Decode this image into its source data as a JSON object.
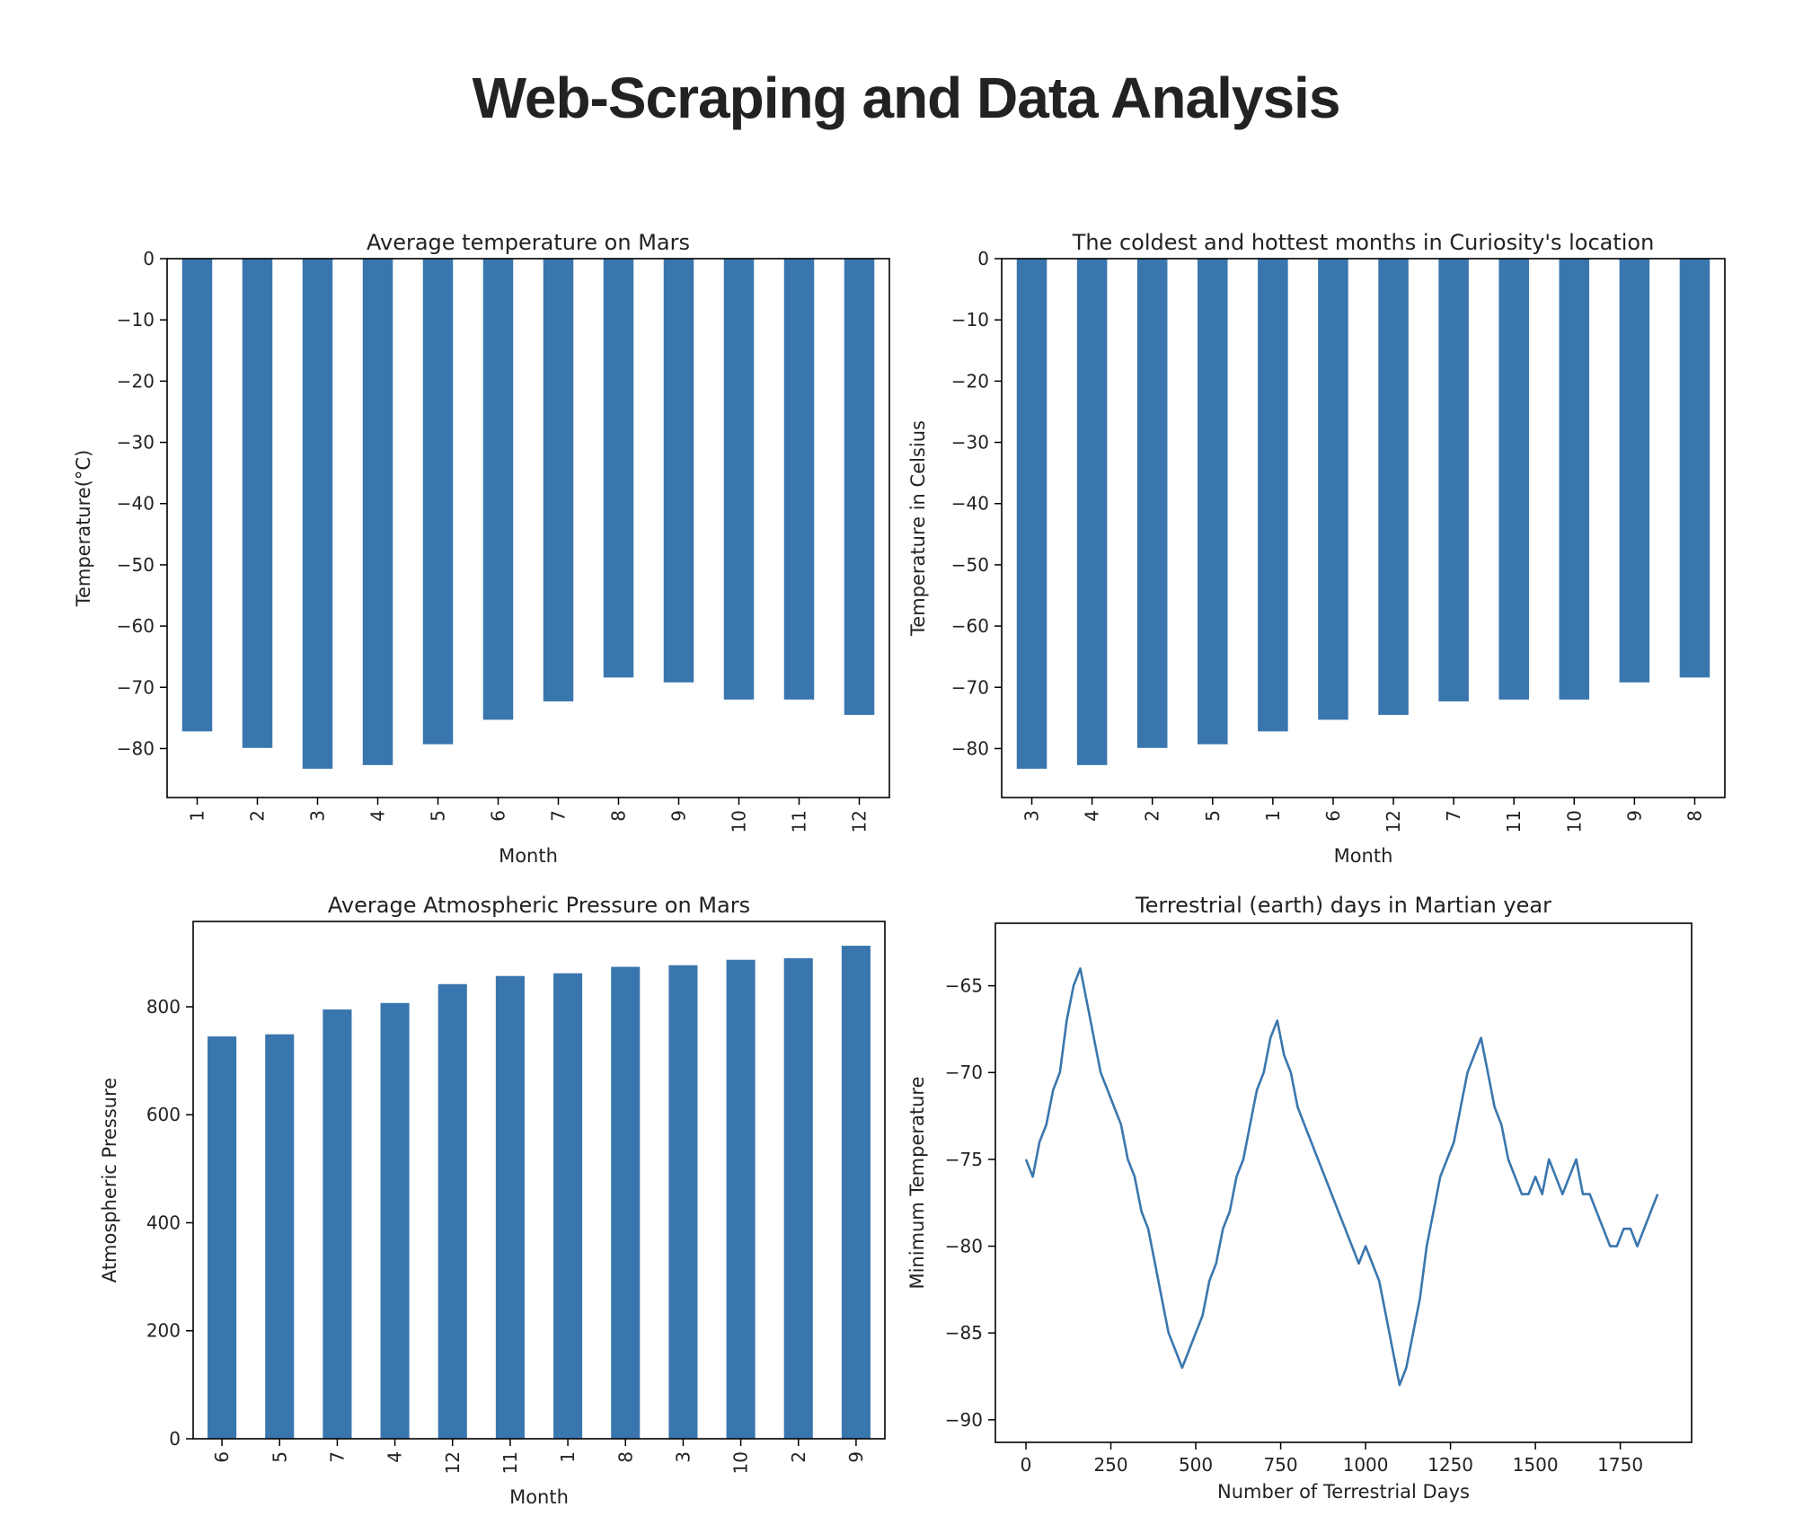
{
  "page": {
    "title": "Web-Scraping and Data Analysis"
  },
  "colors": {
    "bar": "#3a76ae",
    "line": "#3a76ae",
    "axis": "#000000"
  },
  "chart_data": [
    {
      "type": "bar",
      "title": "Average temperature on Mars",
      "xlabel": "Month",
      "ylabel": "Temperature(°C)",
      "categories": [
        "1",
        "2",
        "3",
        "4",
        "5",
        "6",
        "7",
        "8",
        "9",
        "10",
        "11",
        "12"
      ],
      "values": [
        -77.2,
        -79.9,
        -83.3,
        -82.7,
        -79.3,
        -75.3,
        -72.3,
        -68.4,
        -69.2,
        -72.0,
        -72.0,
        -74.5
      ],
      "yticks": [
        0,
        -10,
        -20,
        -30,
        -40,
        -50,
        -60,
        -70,
        -80
      ],
      "ytick_labels": [
        "0",
        "−10",
        "−20",
        "−30",
        "−40",
        "−50",
        "−60",
        "−70",
        "−80"
      ],
      "ylim": [
        -88,
        0
      ],
      "grid": false
    },
    {
      "type": "bar",
      "title": "The coldest and hottest months in Curiosity's location",
      "xlabel": "Month",
      "ylabel": "Temperature in Celsius",
      "categories": [
        "3",
        "4",
        "2",
        "5",
        "1",
        "6",
        "12",
        "7",
        "11",
        "10",
        "9",
        "8"
      ],
      "values": [
        -83.3,
        -82.7,
        -79.9,
        -79.3,
        -77.2,
        -75.3,
        -74.5,
        -72.3,
        -72.0,
        -72.0,
        -69.2,
        -68.4
      ],
      "yticks": [
        0,
        -10,
        -20,
        -30,
        -40,
        -50,
        -60,
        -70,
        -80
      ],
      "ytick_labels": [
        "0",
        "−10",
        "−20",
        "−30",
        "−40",
        "−50",
        "−60",
        "−70",
        "−80"
      ],
      "ylim": [
        -88,
        0
      ],
      "grid": false
    },
    {
      "type": "bar",
      "title": "Average Atmospheric Pressure on Mars",
      "xlabel": "Month",
      "ylabel": "Atmospheric Pressure",
      "categories": [
        "6",
        "5",
        "7",
        "4",
        "12",
        "11",
        "1",
        "8",
        "3",
        "10",
        "2",
        "9"
      ],
      "values": [
        745,
        749,
        795,
        807,
        842,
        857,
        862,
        874,
        877,
        887,
        890,
        913
      ],
      "yticks": [
        0,
        200,
        400,
        600,
        800
      ],
      "ytick_labels": [
        "0",
        "200",
        "400",
        "600",
        "800"
      ],
      "ylim": [
        0,
        958
      ],
      "grid": false
    },
    {
      "type": "line",
      "title": "Terrestrial (earth) days in Martian year",
      "xlabel": "Number of Terrestrial Days",
      "ylabel": "Minimum Temperature",
      "x": [
        0,
        20,
        40,
        60,
        80,
        100,
        120,
        140,
        160,
        180,
        200,
        220,
        240,
        260,
        280,
        300,
        320,
        340,
        360,
        380,
        400,
        420,
        440,
        460,
        480,
        500,
        520,
        540,
        560,
        580,
        600,
        620,
        640,
        660,
        680,
        700,
        720,
        740,
        760,
        780,
        800,
        820,
        840,
        860,
        880,
        900,
        920,
        940,
        960,
        980,
        1000,
        1020,
        1040,
        1060,
        1080,
        1100,
        1120,
        1140,
        1160,
        1180,
        1200,
        1220,
        1240,
        1260,
        1280,
        1300,
        1320,
        1340,
        1360,
        1380,
        1400,
        1420,
        1440,
        1460,
        1480,
        1500,
        1520,
        1540,
        1560,
        1580,
        1600,
        1620,
        1640,
        1660,
        1680,
        1700,
        1720,
        1740,
        1760,
        1780,
        1800,
        1820,
        1840,
        1860
      ],
      "y": [
        -75,
        -76,
        -74,
        -73,
        -71,
        -70,
        -67,
        -65,
        -64,
        -66,
        -68,
        -70,
        -71,
        -72,
        -73,
        -75,
        -76,
        -78,
        -79,
        -81,
        -83,
        -85,
        -86,
        -87,
        -86,
        -85,
        -84,
        -82,
        -81,
        -79,
        -78,
        -76,
        -75,
        -73,
        -71,
        -70,
        -68,
        -67,
        -69,
        -70,
        -72,
        -73,
        -74,
        -75,
        -76,
        -77,
        -78,
        -79,
        -80,
        -81,
        -80,
        -81,
        -82,
        -84,
        -86,
        -88,
        -87,
        -85,
        -83,
        -80,
        -78,
        -76,
        -75,
        -74,
        -72,
        -70,
        -69,
        -68,
        -70,
        -72,
        -73,
        -75,
        -76,
        -77,
        -77,
        -76,
        -77,
        -75,
        -76,
        -77,
        -76,
        -75,
        -77,
        -77,
        -78,
        -79,
        -80,
        -80,
        -79,
        -79,
        -80,
        -79,
        -78,
        -77
      ],
      "xticks": [
        0,
        250,
        500,
        750,
        1000,
        1250,
        1500,
        1750
      ],
      "yticks": [
        -65,
        -70,
        -75,
        -80,
        -85,
        -90
      ],
      "xlim": [
        -90,
        1960
      ],
      "ylim": [
        -91.3,
        -61.4
      ],
      "grid": false
    }
  ]
}
